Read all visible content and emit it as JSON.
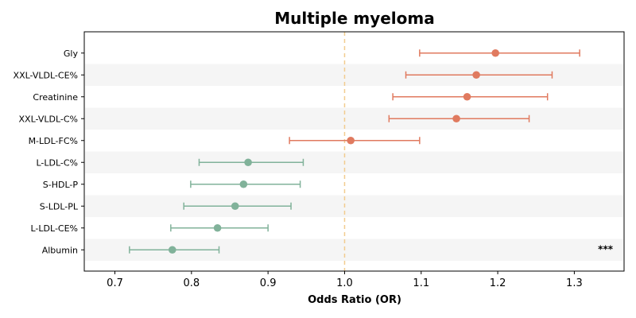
{
  "chart_data": {
    "type": "forest",
    "title": "Multiple myeloma",
    "xlabel": "Odds Ratio (OR)",
    "ylabel": "",
    "xlim": [
      0.66,
      1.365
    ],
    "xticks": [
      "0.7",
      "0.8",
      "0.9",
      "1.0",
      "1.1",
      "1.2",
      "1.3"
    ],
    "reference_line": 1.0,
    "grid": false,
    "row_banding": true,
    "colors": {
      "risk": "#e07a5f",
      "protective": "#81b29a",
      "reference": "#f2cc8f",
      "band": "#f5f5f5"
    },
    "rows": [
      {
        "label": "Gly",
        "or": 1.197,
        "low": 1.098,
        "high": 1.307,
        "group": "risk"
      },
      {
        "label": "XXL-VLDL-CE%",
        "or": 1.172,
        "low": 1.08,
        "high": 1.271,
        "group": "risk"
      },
      {
        "label": "Creatinine",
        "or": 1.16,
        "low": 1.063,
        "high": 1.265,
        "group": "risk"
      },
      {
        "label": "XXL-VLDL-C%",
        "or": 1.146,
        "low": 1.058,
        "high": 1.241,
        "group": "risk"
      },
      {
        "label": "M-LDL-FC%",
        "or": 1.008,
        "low": 0.928,
        "high": 1.098,
        "group": "risk"
      },
      {
        "label": "L-LDL-C%",
        "or": 0.874,
        "low": 0.81,
        "high": 0.946,
        "group": "protective"
      },
      {
        "label": "S-HDL-P",
        "or": 0.868,
        "low": 0.799,
        "high": 0.942,
        "group": "protective"
      },
      {
        "label": "S-LDL-PL",
        "or": 0.857,
        "low": 0.79,
        "high": 0.93,
        "group": "protective"
      },
      {
        "label": "L-LDL-CE%",
        "or": 0.834,
        "low": 0.773,
        "high": 0.9,
        "group": "protective"
      },
      {
        "label": "Albumin",
        "or": 0.775,
        "low": 0.719,
        "high": 0.836,
        "group": "protective",
        "annotation": "***"
      }
    ]
  }
}
